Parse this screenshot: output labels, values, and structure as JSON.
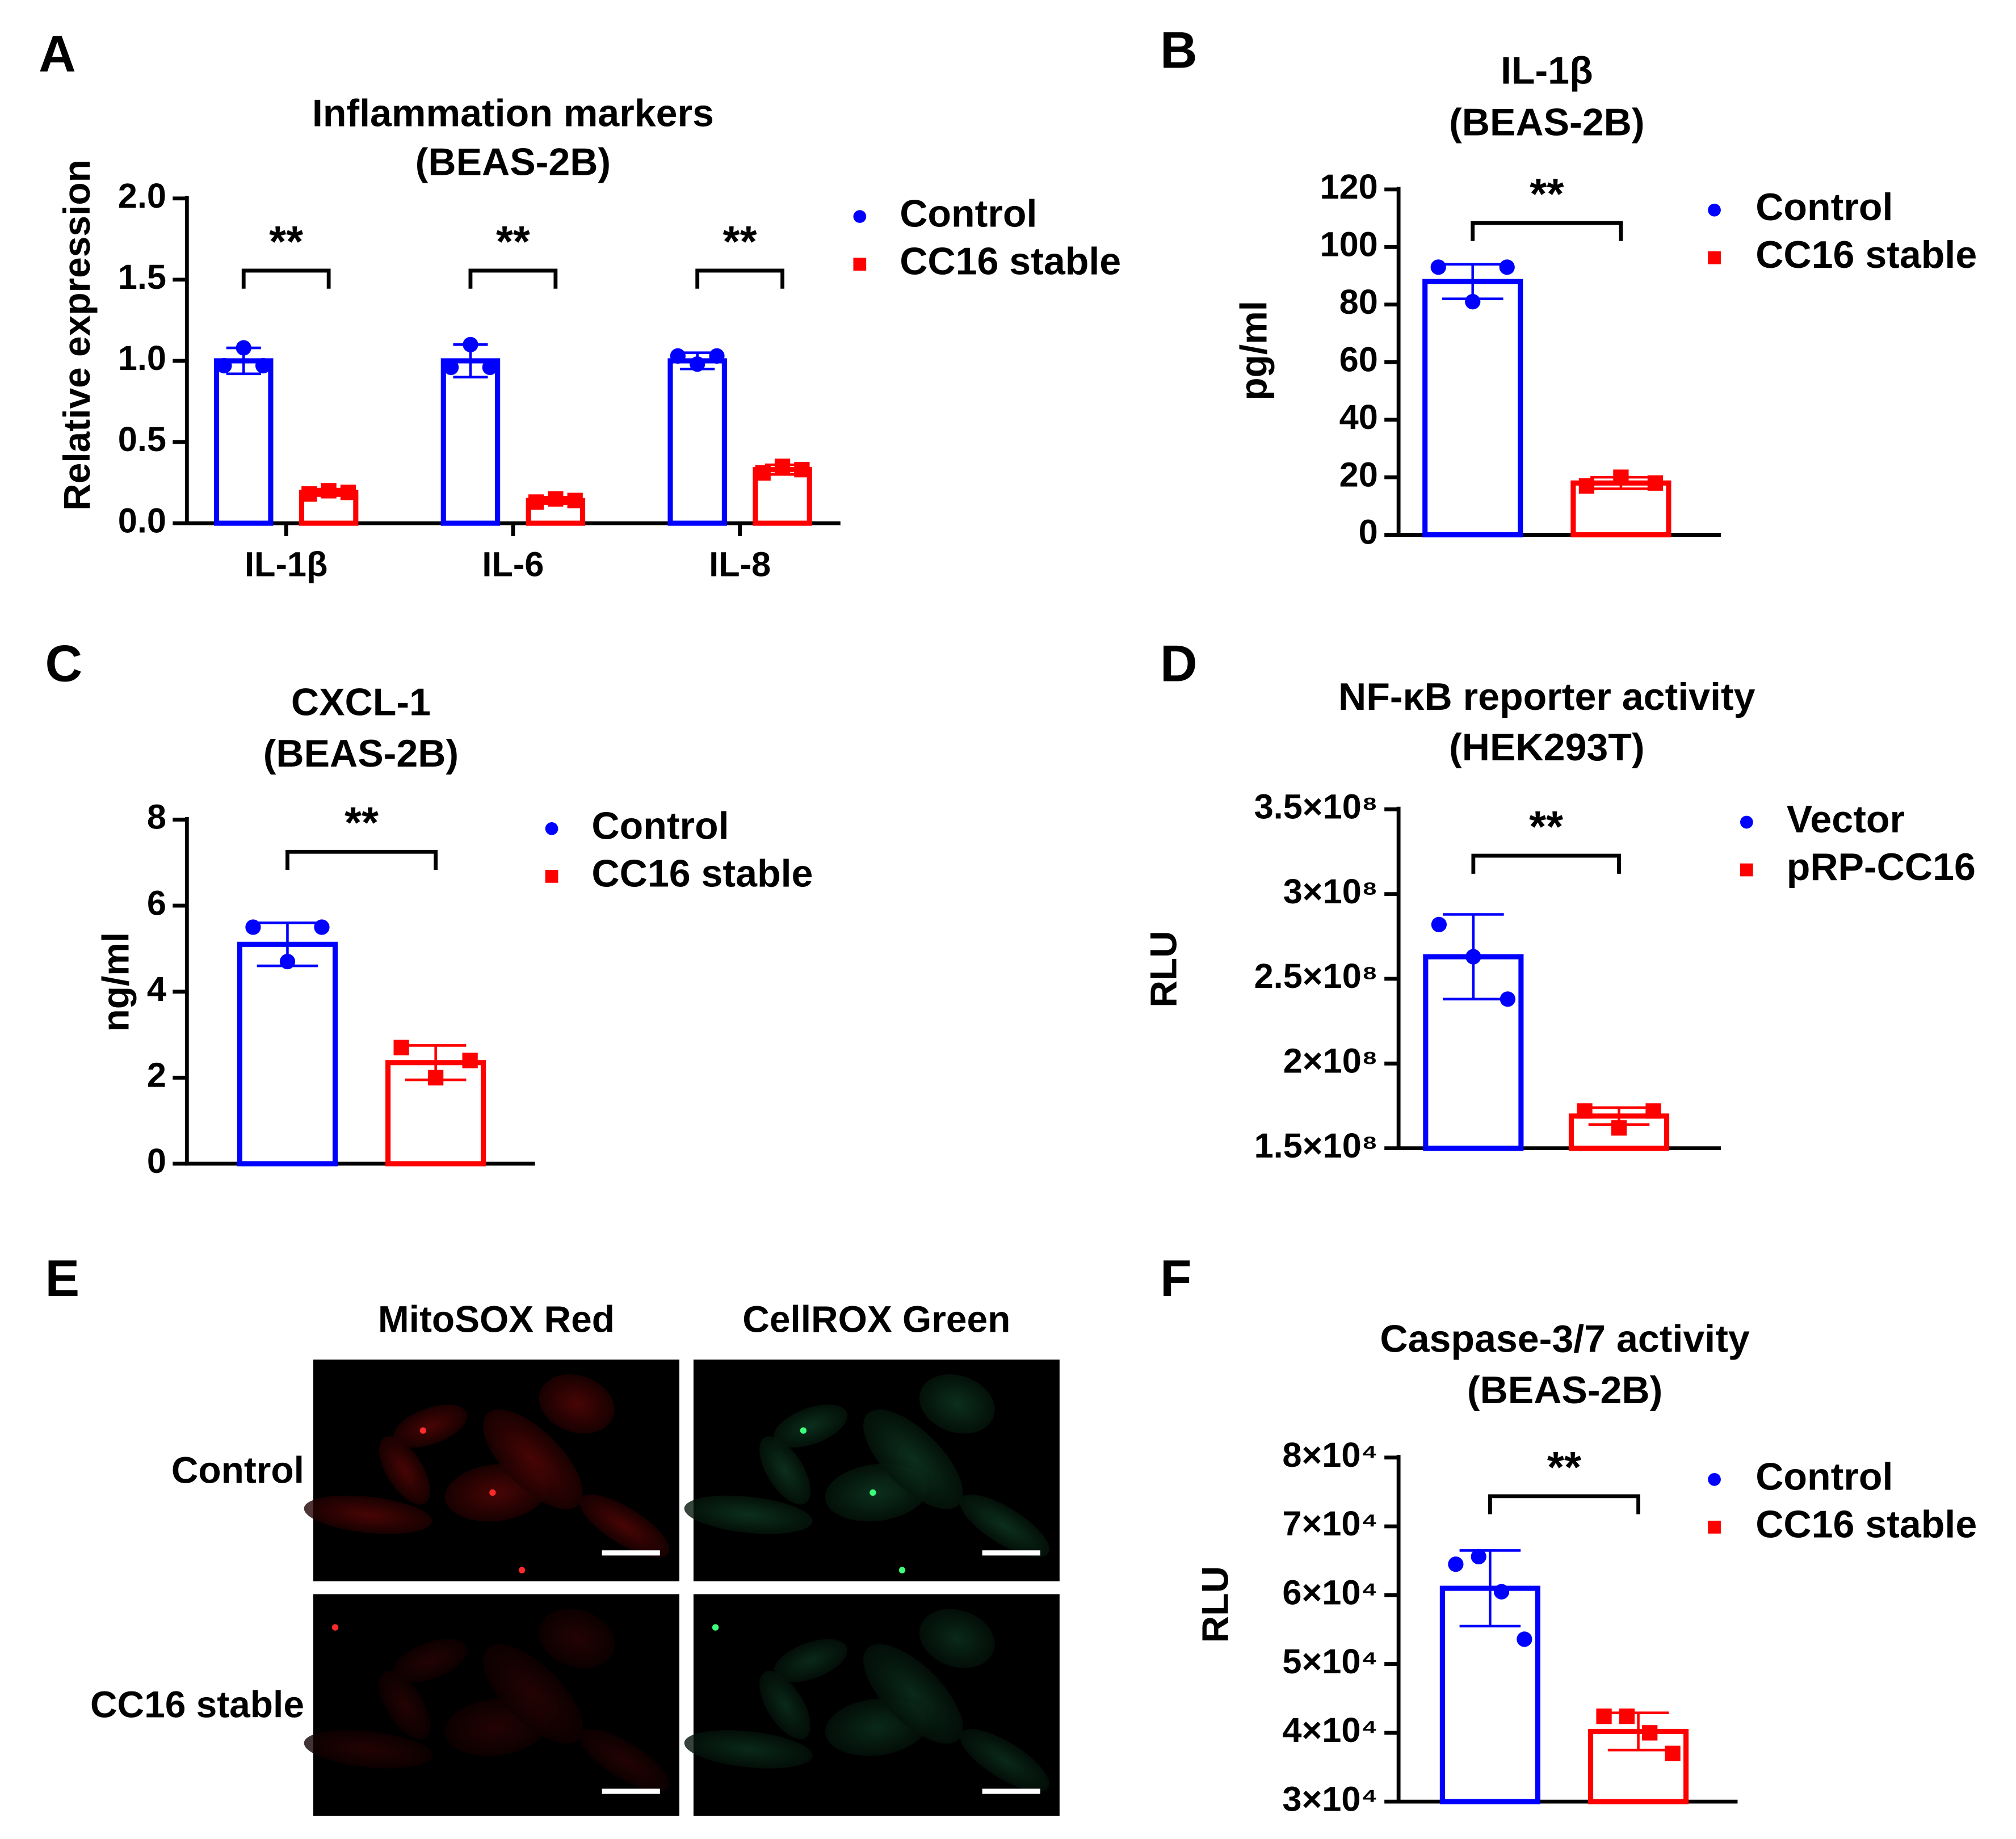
{
  "chart_data": [
    {
      "type": "bar",
      "panel": "A",
      "title": "Inflammation markers",
      "subtitle": "(BEAS-2B)",
      "ylabel": "Relative expression",
      "categories": [
        "IL-1β",
        "IL-6",
        "IL-8"
      ],
      "series": [
        {
          "name": "Control",
          "color": "#0000ff",
          "marker": "circle",
          "values": [
            1.0,
            1.0,
            1.0
          ],
          "errors": [
            0.08,
            0.1,
            0.05
          ],
          "points": [
            [
              0.97,
              1.08,
              0.97
            ],
            [
              0.96,
              1.1,
              0.96
            ],
            [
              1.03,
              0.98,
              1.03
            ]
          ]
        },
        {
          "name": "CC16 stable",
          "color": "#ff0000",
          "marker": "square",
          "values": [
            0.19,
            0.14,
            0.33
          ],
          "errors": [
            0.02,
            0.02,
            0.03
          ],
          "points": [
            [
              0.18,
              0.2,
              0.19
            ],
            [
              0.13,
              0.15,
              0.14
            ],
            [
              0.31,
              0.35,
              0.33
            ]
          ]
        }
      ],
      "significance": [
        "**",
        "**",
        "**"
      ],
      "ylim": [
        0,
        2
      ],
      "yticks": [
        {
          "value": 0,
          "label": "0.0"
        },
        {
          "value": 0.5,
          "label": "0.5"
        },
        {
          "value": 1,
          "label": "1.0"
        },
        {
          "value": 1.5,
          "label": "1.5"
        },
        {
          "value": 2,
          "label": "2.0"
        }
      ]
    },
    {
      "type": "bar",
      "panel": "B",
      "title": "IL-1β",
      "subtitle": "(BEAS-2B)",
      "ylabel": "pg/ml",
      "categories": [
        null
      ],
      "series": [
        {
          "name": "Control",
          "color": "#0000ff",
          "marker": "circle",
          "values": [
            88
          ],
          "errors": [
            6
          ],
          "points": [
            [
              93,
              81,
              93
            ]
          ]
        },
        {
          "name": "CC16 stable",
          "color": "#ff0000",
          "marker": "square",
          "values": [
            18
          ],
          "errors": [
            2
          ],
          "points": [
            [
              17,
              20,
              18
            ]
          ]
        }
      ],
      "significance": [
        "**"
      ],
      "ylim": [
        0,
        120
      ],
      "yticks": [
        0,
        20,
        40,
        60,
        80,
        100,
        120
      ]
    },
    {
      "type": "bar",
      "panel": "C",
      "title": "CXCL-1",
      "subtitle": "(BEAS-2B)",
      "ylabel": "ng/ml",
      "categories": [
        null
      ],
      "series": [
        {
          "name": "Control",
          "color": "#0000ff",
          "marker": "circle",
          "values": [
            5.1
          ],
          "errors": [
            0.5
          ],
          "points": [
            [
              5.5,
              4.7,
              5.5
            ]
          ]
        },
        {
          "name": "CC16 stable",
          "color": "#ff0000",
          "marker": "square",
          "values": [
            2.35
          ],
          "errors": [
            0.4
          ],
          "points": [
            [
              2.7,
              2.0,
              2.4
            ]
          ]
        }
      ],
      "significance": [
        "**"
      ],
      "ylim": [
        0,
        8
      ],
      "yticks": [
        0,
        2,
        4,
        6,
        8
      ]
    },
    {
      "type": "bar",
      "panel": "D",
      "title": "NF-κB reporter activity",
      "subtitle": "(HEK293T)",
      "ylabel": "RLU",
      "categories": [
        null
      ],
      "series": [
        {
          "name": "Vector",
          "color": "#0000ff",
          "marker": "circle",
          "values": [
            263000000
          ],
          "errors": [
            25000000
          ],
          "points": [
            [
              282000000,
              263000000,
              238000000
            ]
          ]
        },
        {
          "name": "pRP-CC16",
          "color": "#ff0000",
          "marker": "square",
          "values": [
            169000000
          ],
          "errors": [
            5000000
          ],
          "points": [
            [
              172000000,
              162000000,
              172000000
            ]
          ]
        }
      ],
      "significance": [
        "**"
      ],
      "ylim": [
        150000000,
        350000000
      ],
      "yticks": [
        {
          "value": 150000000,
          "label": "1.5×10⁸"
        },
        {
          "value": 200000000,
          "label": "2×10⁸"
        },
        {
          "value": 250000000,
          "label": "2.5×10⁸"
        },
        {
          "value": 300000000,
          "label": "3×10⁸"
        },
        {
          "value": 350000000,
          "label": "3.5×10⁸"
        }
      ]
    },
    {
      "type": "bar",
      "panel": "F",
      "title": "Caspase-3/7 activity",
      "subtitle": "(BEAS-2B)",
      "ylabel": "RLU",
      "categories": [
        null
      ],
      "series": [
        {
          "name": "Control",
          "color": "#0000ff",
          "marker": "circle",
          "values": [
            61000
          ],
          "errors": [
            5500
          ],
          "points": [
            [
              64500,
              65600,
              60500,
              53600
            ]
          ]
        },
        {
          "name": "CC16 stable",
          "color": "#ff0000",
          "marker": "square",
          "values": [
            40200
          ],
          "errors": [
            2700
          ],
          "points": [
            [
              42400,
              42400,
              40000,
              37000
            ]
          ]
        }
      ],
      "significance": [
        "**"
      ],
      "ylim": [
        30000,
        80000
      ],
      "yticks": [
        {
          "value": 30000,
          "label": "3×10⁴"
        },
        {
          "value": 40000,
          "label": "4×10⁴"
        },
        {
          "value": 50000,
          "label": "5×10⁴"
        },
        {
          "value": 60000,
          "label": "6×10⁴"
        },
        {
          "value": 70000,
          "label": "7×10⁴"
        },
        {
          "value": 80000,
          "label": "8×10⁴"
        }
      ]
    }
  ],
  "panel_e": {
    "panel": "E",
    "columns": [
      "MitoSOX Red",
      "CellROX Green"
    ],
    "rows": [
      "Control",
      "CC16 stable"
    ]
  }
}
